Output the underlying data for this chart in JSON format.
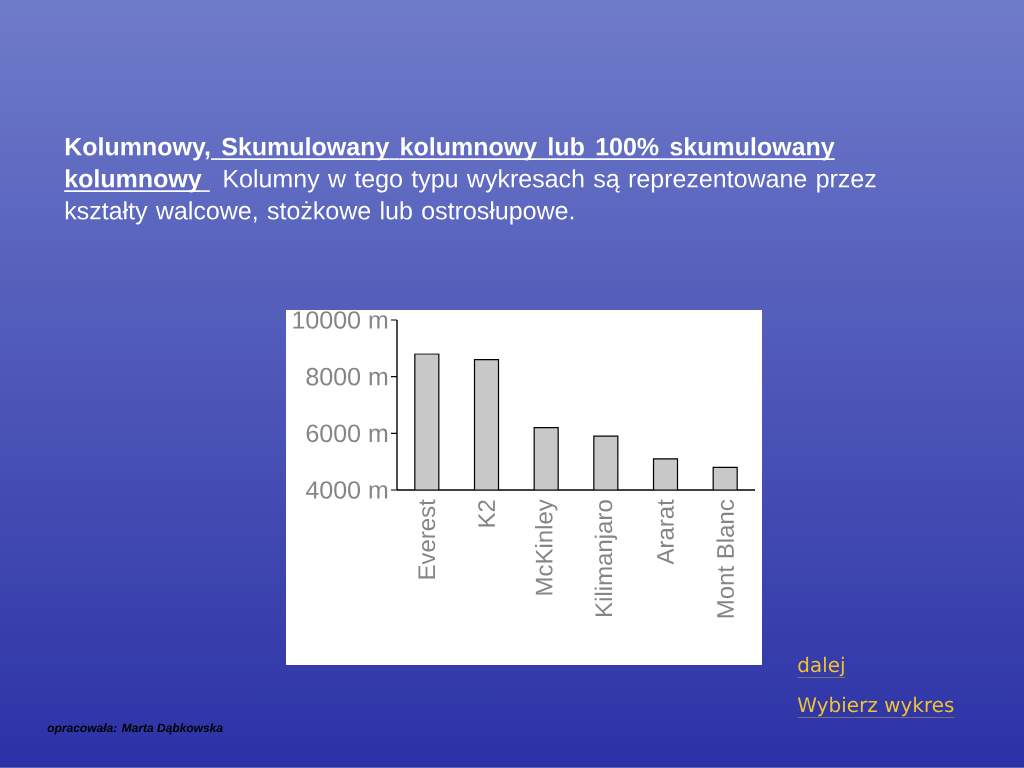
{
  "chart_data": {
    "type": "bar",
    "title": "Kolumnowy, Skumulowany kolumnowy lub 100% skumulowany kolumnowy",
    "subtitle": "Kolumny w tego typu wykresach są reprezentowane przez kształty walcowe, stożkowe lub ostrosłupowe.",
    "categories": [
      "Everest",
      "K2",
      "McKinley",
      "Kilimanjaro",
      "Ararat",
      "Mont Blanc"
    ],
    "values": [
      8800,
      8600,
      6200,
      5900,
      5100,
      4800
    ],
    "color": "#c8c8c8",
    "ylim": [
      4000,
      10000
    ],
    "yticks": [
      {
        "value": 4000,
        "label": "4000 m"
      },
      {
        "value": 6000,
        "label": "6000 m"
      },
      {
        "value": 8000,
        "label": "8000 m"
      },
      {
        "value": 10000,
        "label": "10000 m"
      }
    ],
    "annotations": [
      "dalej",
      "Wybierz wykres",
      "opracowała: Marta Dąbkowska"
    ]
  }
}
